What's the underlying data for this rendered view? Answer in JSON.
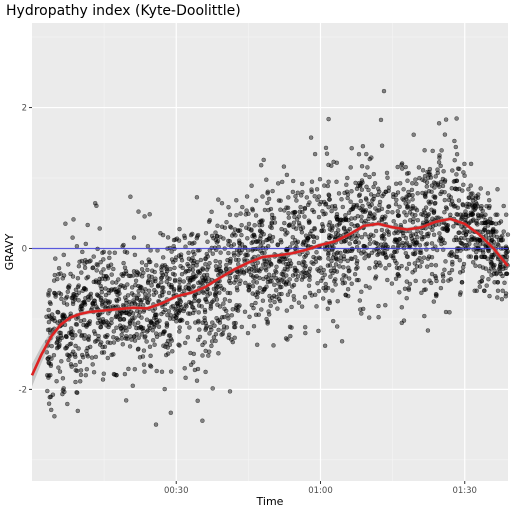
{
  "chart_data": {
    "type": "scatter",
    "title": "Hydropathy index (Kyte-Doolittle)",
    "xlabel": "Time",
    "ylabel": "GRAVY",
    "x_unit": "minutes",
    "xlim": [
      0,
      99
    ],
    "ylim": [
      -3.3,
      3.2
    ],
    "x_ticks": [
      {
        "value": 30,
        "label": "00:30"
      },
      {
        "value": 60,
        "label": "01:00"
      },
      {
        "value": 90,
        "label": "01:30"
      }
    ],
    "y_ticks": [
      {
        "value": -2,
        "label": "-2"
      },
      {
        "value": 0,
        "label": "0"
      },
      {
        "value": 2,
        "label": "2"
      }
    ],
    "grid": true,
    "background": "#ebebeb",
    "point_color": "#000000",
    "reference_line": {
      "y": 0,
      "color": "#3b3bd6"
    },
    "smooth_series": {
      "color": "#dd2222",
      "x": [
        0,
        2,
        4,
        6,
        8,
        10,
        12,
        15,
        18,
        21,
        24,
        27,
        30,
        33,
        36,
        39,
        42,
        45,
        48,
        51,
        54,
        57,
        60,
        63,
        66,
        69,
        72,
        75,
        78,
        81,
        84,
        87,
        90,
        93,
        96,
        99
      ],
      "y": [
        -1.8,
        -1.5,
        -1.25,
        -1.08,
        -0.98,
        -0.93,
        -0.9,
        -0.88,
        -0.86,
        -0.84,
        -0.85,
        -0.78,
        -0.68,
        -0.63,
        -0.55,
        -0.42,
        -0.3,
        -0.2,
        -0.12,
        -0.1,
        -0.07,
        -0.02,
        0.05,
        0.1,
        0.2,
        0.32,
        0.35,
        0.3,
        0.27,
        0.3,
        0.38,
        0.42,
        0.35,
        0.2,
        0.0,
        -0.25
      ]
    }
  }
}
